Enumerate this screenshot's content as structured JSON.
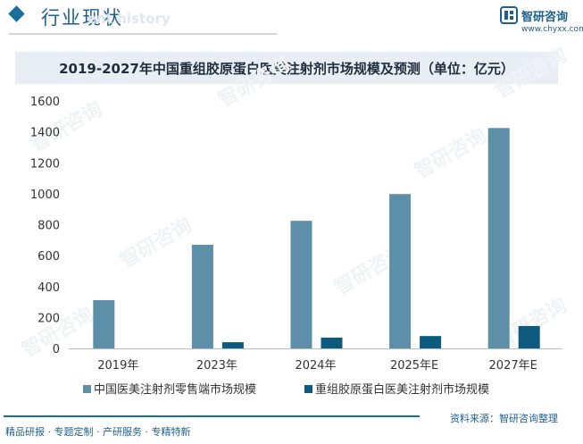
{
  "header": {
    "title": "行业现状",
    "subtitle": "ent history"
  },
  "brand": {
    "name": "智研咨询",
    "url": "www.chyxx.com"
  },
  "watermark": "智研咨询",
  "footer": {
    "left": "精品研报 · 专题定制 · 产研服务 · 专精特新",
    "source": "资料来源：智研咨询整理"
  },
  "colors": {
    "series1": "#5e8fa8",
    "series2": "#0e5a7e",
    "accent": "#1e5f8c",
    "title_bg": "#e8eef4"
  },
  "chart_data": {
    "type": "bar",
    "title": "2019-2027年中国重组胶原蛋白医美注射剂市场规模及预测（单位：亿元）",
    "categories": [
      "2019年",
      "2023年",
      "2024年",
      "2025年E",
      "2027年E"
    ],
    "series": [
      {
        "name": "中国医美注射剂零售端市场规模",
        "values": [
          312,
          670,
          825,
          998,
          1425
        ]
      },
      {
        "name": "重组胶原蛋白医美注射剂市场规模",
        "values": [
          0,
          40,
          70,
          80,
          145
        ]
      }
    ],
    "ylim": [
      0,
      1600
    ],
    "yticks": [
      0,
      200,
      400,
      600,
      800,
      1000,
      1200,
      1400,
      1600
    ],
    "grid": false,
    "legend": "bottom"
  }
}
